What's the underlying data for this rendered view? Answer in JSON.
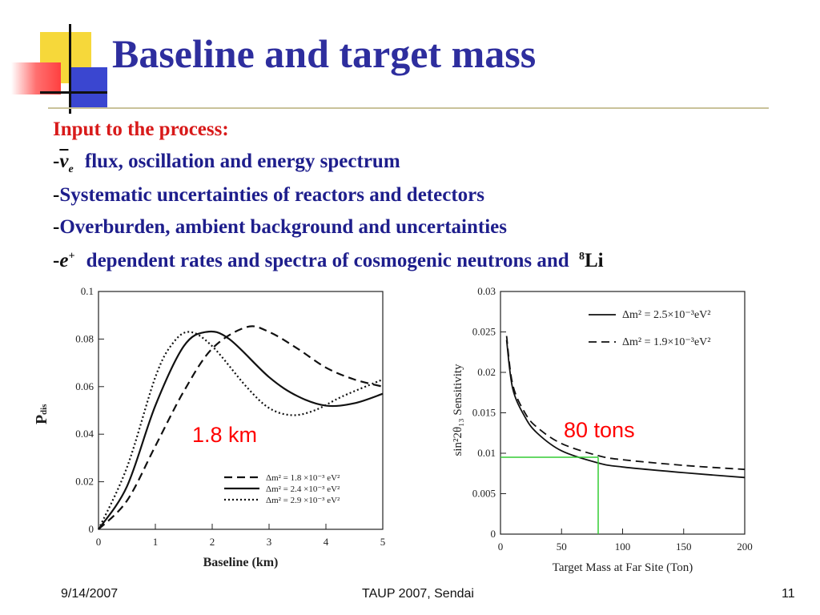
{
  "slide": {
    "title": "Baseline and target mass",
    "lines": {
      "input": "Input to the process:",
      "flux_symbol": "ν",
      "flux_symbol_sub": "e",
      "flux_text": "flux, oscillation and energy spectrum",
      "systematic": "Systematic uncertainties of reactors and detectors",
      "overburden": "Overburden, ambient background and uncertainties",
      "positron_symbol": "e",
      "positron_sup": "+",
      "dependent_text": "dependent rates and spectra of cosmogenic neutrons and",
      "li_sup": "8",
      "li": "Li"
    },
    "dash": "-",
    "annotations": {
      "baseline": "1.8 km",
      "mass": "80 tons"
    },
    "footer": {
      "date": "9/14/2007",
      "conference": "TAUP 2007, Sendai",
      "page": "11"
    },
    "colors": {
      "title": "#2e2e9e",
      "body": "#1e1e8c",
      "highlight": "#d81a1a",
      "annotation": "#ff0000",
      "marker": "#33cc33"
    }
  },
  "chart_data": [
    {
      "type": "line",
      "xlabel": "Baseline (km)",
      "ylabel": "P_dis",
      "ylabel_main": "P",
      "ylabel_sub": "dis",
      "xlim": [
        0,
        5
      ],
      "ylim": [
        0,
        0.1
      ],
      "xticks": [
        "0",
        "1",
        "2",
        "3",
        "4",
        "5"
      ],
      "yticks": [
        "0",
        "0.02",
        "0.04",
        "0.06",
        "0.08",
        "0.1"
      ],
      "legend_position": "bottom-right",
      "series": [
        {
          "name": "Δm² = 1.8 ×10⁻³ eV²",
          "style": "dashed",
          "x": [
            0,
            0.5,
            1.0,
            1.5,
            2.0,
            2.6,
            3.0,
            3.5,
            4.0,
            4.5,
            5.0
          ],
          "y": [
            0,
            0.012,
            0.035,
            0.058,
            0.076,
            0.085,
            0.083,
            0.076,
            0.068,
            0.063,
            0.06
          ]
        },
        {
          "name": "Δm² = 2.4 ×10⁻³ eV²",
          "style": "solid",
          "x": [
            0,
            0.5,
            1.0,
            1.5,
            1.9,
            2.3,
            3.0,
            3.5,
            4.0,
            4.5,
            5.0
          ],
          "y": [
            0,
            0.018,
            0.052,
            0.077,
            0.083,
            0.08,
            0.064,
            0.056,
            0.052,
            0.053,
            0.057
          ]
        },
        {
          "name": "Δm² = 2.9 ×10⁻³ eV²",
          "style": "dotted",
          "x": [
            0,
            0.5,
            1.0,
            1.3,
            1.6,
            2.0,
            2.6,
            3.0,
            3.4,
            3.8,
            4.3,
            5.0
          ],
          "y": [
            0,
            0.026,
            0.064,
            0.078,
            0.083,
            0.077,
            0.06,
            0.051,
            0.048,
            0.05,
            0.056,
            0.063
          ]
        }
      ],
      "marker": {
        "x": 1.8,
        "label": "1.8 km"
      }
    },
    {
      "type": "line",
      "xlabel": "Target Mass at Far Site (Ton)",
      "ylabel": "sin²2θ₁₃ Sensitivity",
      "xlim": [
        0,
        200
      ],
      "ylim": [
        0,
        0.03
      ],
      "xticks": [
        "0",
        "50",
        "100",
        "150",
        "200"
      ],
      "yticks": [
        "0",
        "0.005",
        "0.01",
        "0.015",
        "0.02",
        "0.025",
        "0.03"
      ],
      "legend_position": "top-right",
      "series": [
        {
          "name": "Δm² = 2.5×10⁻³eV²",
          "style": "solid",
          "x": [
            5,
            10,
            20,
            30,
            50,
            80,
            100,
            150,
            200
          ],
          "y": [
            0.024,
            0.018,
            0.0145,
            0.0125,
            0.0103,
            0.0088,
            0.0083,
            0.0076,
            0.007
          ]
        },
        {
          "name": "Δm² = 1.9×10⁻³eV²",
          "style": "dashed",
          "x": [
            5,
            10,
            20,
            30,
            50,
            80,
            100,
            150,
            200
          ],
          "y": [
            0.0245,
            0.0185,
            0.015,
            0.0132,
            0.0112,
            0.0097,
            0.0092,
            0.0085,
            0.008
          ]
        }
      ],
      "marker": {
        "x": 80,
        "y": 0.0095,
        "label": "80 tons"
      }
    }
  ]
}
